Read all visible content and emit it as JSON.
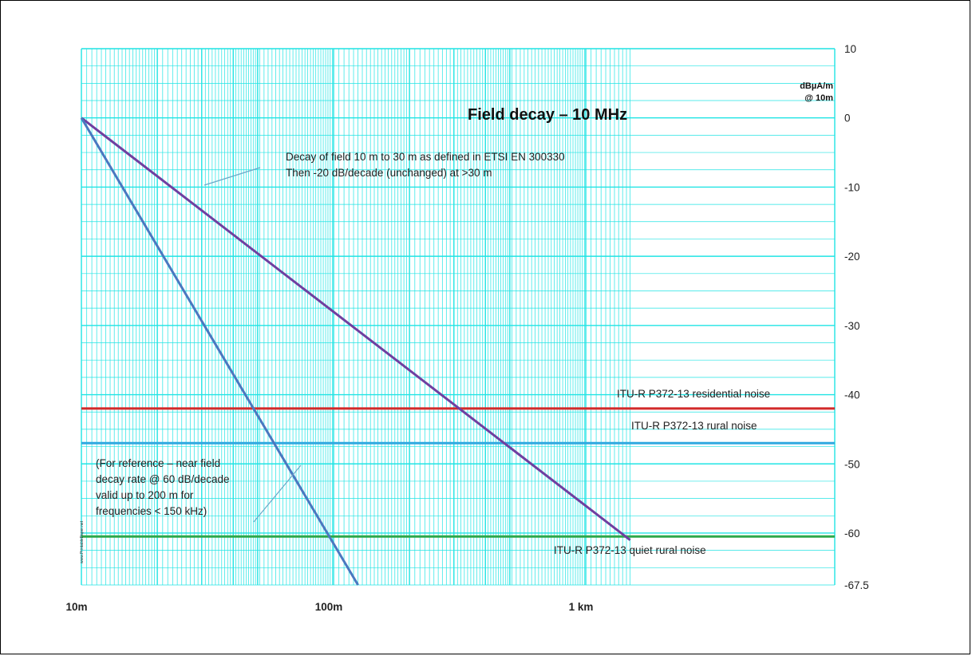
{
  "chart_data": {
    "type": "line",
    "title": "Field decay – 10 MHz",
    "ylabel": "dBµA/m\n@ 10m",
    "xscale": "log",
    "xlim_m": [
      10,
      1500
    ],
    "ylim": [
      -67.5,
      10
    ],
    "grid": true,
    "x_ticks": [
      {
        "value": 10,
        "label": "10m"
      },
      {
        "value": 100,
        "label": "100m"
      },
      {
        "value": 1000,
        "label": "1 km"
      }
    ],
    "y_ticks": [
      10,
      0,
      -10,
      -20,
      -30,
      -40,
      -50,
      -60,
      -67.5
    ],
    "series": [
      {
        "color": "#6f3fa0",
        "x": [
          10,
          1500
        ],
        "y": [
          0,
          -61
        ]
      },
      {
        "color": "#4a78c0",
        "x": [
          10,
          125
        ],
        "y": [
          0,
          -67.5
        ]
      }
    ],
    "hlines": [
      {
        "y": -42,
        "color": "#d22a2a",
        "label": "ITU-R P372-13 residential noise"
      },
      {
        "y": -47,
        "color": "#30a8e0",
        "label": "ITU-R P372-13 rural noise"
      },
      {
        "y": -60.5,
        "color": "#2ea84a",
        "label": "ITU-R P372-13 quiet rural noise"
      }
    ],
    "annotations": [
      {
        "lines": [
          "Decay of field 10 m to 30 m as defined in ETSI EN 300330",
          "Then -20 dB/decade (unchanged) at >30 m"
        ]
      },
      {
        "lines": [
          "(For reference – near field",
          "decay rate @ 60 dB/decade",
          "valid up to 200 m for",
          "frequencies < 150 kHz)"
        ]
      }
    ],
    "watermark": "www.PrintablePaper.net"
  }
}
